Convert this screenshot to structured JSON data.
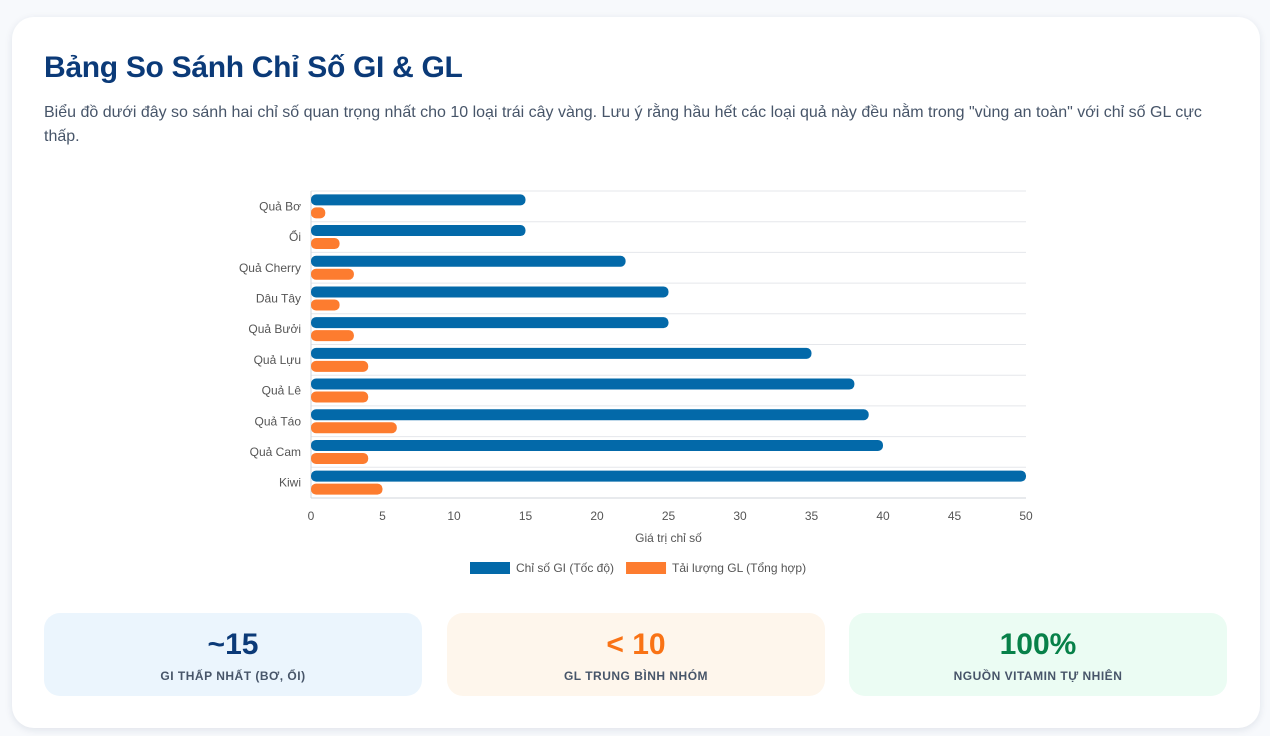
{
  "header": {
    "title": "Bảng So Sánh Chỉ Số GI & GL",
    "description": "Biểu đồ dưới đây so sánh hai chỉ số quan trọng nhất cho 10 loại trái cây vàng. Lưu ý rằng hầu hết các loại quả này đều nằm trong \"vùng an toàn\" với chỉ số GL cực thấp."
  },
  "chart_data": {
    "type": "bar",
    "orientation": "horizontal",
    "categories": [
      "Quả Bơ",
      "Ổi",
      "Quả Cherry",
      "Dâu Tây",
      "Quả Bưởi",
      "Quả Lựu",
      "Quả Lê",
      "Quả Táo",
      "Quả Cam",
      "Kiwi"
    ],
    "series": [
      {
        "name": "Chỉ số GI (Tốc độ)",
        "color": "#0369a9",
        "values": [
          15,
          15,
          22,
          25,
          25,
          35,
          38,
          39,
          40,
          50
        ]
      },
      {
        "name": "Tải lượng GL (Tổng hợp)",
        "color": "#fd7c2f",
        "values": [
          1,
          2,
          3,
          2,
          3,
          4,
          4,
          6,
          4,
          5
        ]
      }
    ],
    "xlabel": "Giá trị chỉ số",
    "ylabel": "",
    "xlim": [
      0,
      50
    ],
    "xticks": [
      0,
      5,
      10,
      15,
      20,
      25,
      30,
      35,
      40,
      45,
      50
    ],
    "grid": "horizontal",
    "legend_position": "bottom"
  },
  "stats": [
    {
      "value": "~15",
      "label": "GI THẤP NHẤT (BƠ, ỔI)",
      "color": "#0b3a78",
      "bg": "#ebf5fd"
    },
    {
      "value": "< 10",
      "label": "GL TRUNG BÌNH NHÓM",
      "color": "#f97316",
      "bg": "#fef6ec"
    },
    {
      "value": "100%",
      "label": "NGUỒN VITAMIN TỰ NHIÊN",
      "color": "#078149",
      "bg": "#ebfcf3"
    }
  ]
}
